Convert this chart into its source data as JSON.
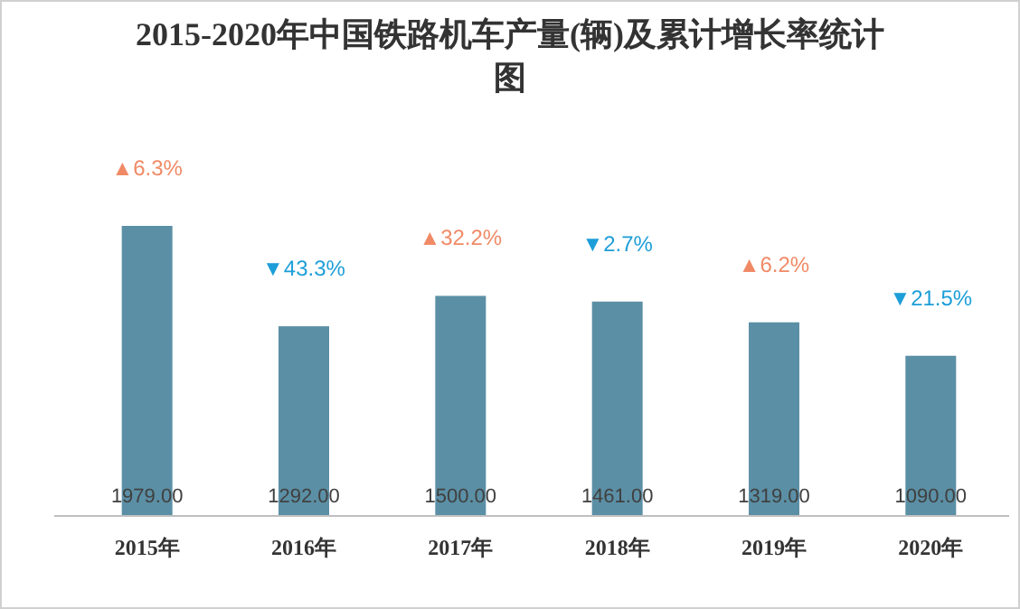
{
  "chart_data": {
    "type": "bar",
    "title": "2015-2020年中国铁路机车产量(辆)及累计增长率统计图",
    "categories": [
      "2015年",
      "2016年",
      "2017年",
      "2018年",
      "2019年",
      "2020年"
    ],
    "values": [
      1979,
      1292,
      1500,
      1461,
      1319,
      1090
    ],
    "color": "#5b8fa5",
    "value_labels": [
      "1979.00",
      "1292.00",
      "1500.00",
      "1461.00",
      "1319.00",
      "1090.00"
    ],
    "annotations": [
      "▲6.3%",
      "▼43.3%",
      "▲32.2%",
      "▼2.7%",
      "▲6.2%",
      "▼21.5%"
    ]
  }
}
